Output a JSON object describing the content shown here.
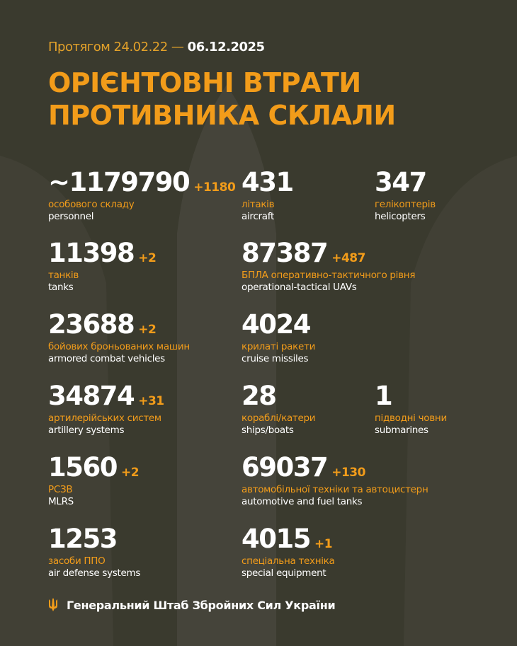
{
  "header": {
    "period_prefix": "Протягом 24.02.22 —",
    "period_end": "06.12.2025",
    "title_line1": "ОРІЄНТОВНІ ВТРАТИ",
    "title_line2": "ПРОТИВНИКА СКЛАЛИ"
  },
  "stats": [
    {
      "value": "~1179790",
      "delta": "+1180",
      "ua": "особового складу",
      "en": "personnel"
    },
    {
      "value": "431",
      "delta": "",
      "ua": "літаків",
      "en": "aircraft"
    },
    {
      "value": "347",
      "delta": "",
      "ua": "гелікоптерів",
      "en": "helicopters"
    },
    {
      "value": "11398",
      "delta": "+2",
      "ua": "танків",
      "en": "tanks"
    },
    {
      "value": "87387",
      "delta": "+487",
      "ua": "БПЛА оперативно-тактичного рівня",
      "en": "operational-tactical UAVs"
    },
    {
      "value": "23688",
      "delta": "+2",
      "ua": "бойових броньованих машин",
      "en": "armored combat vehicles"
    },
    {
      "value": "4024",
      "delta": "",
      "ua": "крилаті ракети",
      "en": "cruise missiles"
    },
    {
      "value": "34874",
      "delta": "+31",
      "ua": "артилерійських систем",
      "en": "artillery systems"
    },
    {
      "value": "28",
      "delta": "",
      "ua": "кораблі/катери",
      "en": "ships/boats"
    },
    {
      "value": "1",
      "delta": "",
      "ua": "підводні човни",
      "en": "submarines"
    },
    {
      "value": "1560",
      "delta": "+2",
      "ua": "РСЗВ",
      "en": "MLRS"
    },
    {
      "value": "69037",
      "delta": "+130",
      "ua": "автомобільної техніки та автоцистерн",
      "en": "automotive and fuel tanks"
    },
    {
      "value": "1253",
      "delta": "",
      "ua": "засоби ППО",
      "en": "air defense systems"
    },
    {
      "value": "4015",
      "delta": "+1",
      "ua": "спеціальна техніка",
      "en": "special equipment"
    }
  ],
  "footer": {
    "text": "Генеральний Штаб Збройних Сил України",
    "icon": "trident-icon"
  },
  "colors": {
    "background": "#3a3a2e",
    "accent": "#f29c1a",
    "text": "#ffffff"
  }
}
